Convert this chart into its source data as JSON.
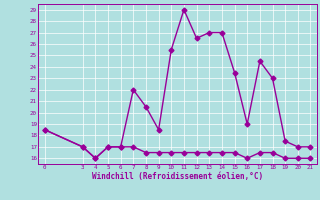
{
  "xlabel": "Windchill (Refroidissement éolien,°C)",
  "line1_x": [
    0,
    3,
    4,
    5,
    6,
    7,
    8,
    9,
    10,
    11,
    12,
    13,
    14,
    15,
    16,
    17,
    18,
    19,
    20,
    21
  ],
  "line1_y": [
    18.5,
    17.0,
    16.0,
    17.0,
    17.0,
    22.0,
    20.5,
    18.5,
    25.5,
    29.0,
    26.5,
    27.0,
    27.0,
    23.5,
    19.0,
    24.5,
    23.0,
    17.5,
    17.0,
    17.0
  ],
  "line2_x": [
    0,
    3,
    4,
    5,
    6,
    7,
    8,
    9,
    10,
    11,
    12,
    13,
    14,
    15,
    16,
    17,
    18,
    19,
    20,
    21
  ],
  "line2_y": [
    18.5,
    17.0,
    16.0,
    17.0,
    17.0,
    17.0,
    16.5,
    16.5,
    16.5,
    16.5,
    16.5,
    16.5,
    16.5,
    16.5,
    16.0,
    16.5,
    16.5,
    16.0,
    16.0,
    16.0
  ],
  "line_color": "#990099",
  "bg_color": "#b0e0e0",
  "grid_color": "#c0d8d8",
  "ylim": [
    15.5,
    29.5
  ],
  "xlim": [
    -0.5,
    21.5
  ],
  "yticks": [
    16,
    17,
    18,
    19,
    20,
    21,
    22,
    23,
    24,
    25,
    26,
    27,
    28,
    29
  ],
  "xticks": [
    0,
    3,
    4,
    5,
    6,
    7,
    8,
    9,
    10,
    11,
    12,
    13,
    14,
    15,
    16,
    17,
    18,
    19,
    20,
    21
  ],
  "marker": "D",
  "markersize": 2.5,
  "linewidth": 1.0
}
